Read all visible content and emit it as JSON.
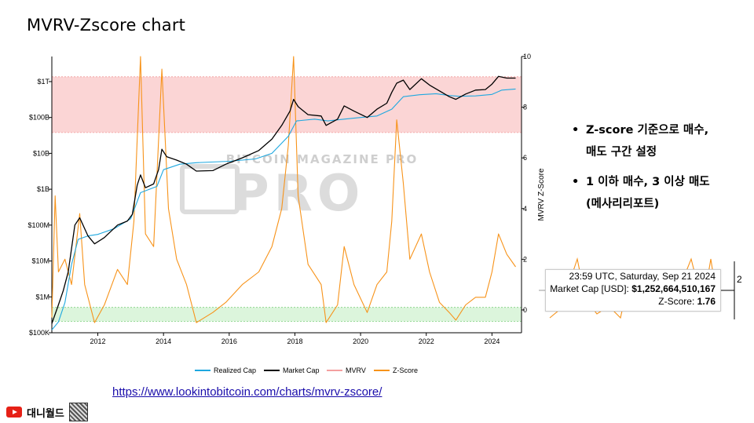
{
  "slide": {
    "title": "MVRV-Zscore chart",
    "bullets": [
      {
        "lines": [
          "Z-score 기준으로 매수,",
          "매도 구간 설정"
        ]
      },
      {
        "lines": [
          "1 이하 매수, 3 이상 매도",
          "(메사리리포트)"
        ]
      }
    ],
    "source_link": "https://www.lookintobitcoin.com/charts/mvrv-zscore/",
    "channel_name": "대니월드",
    "channel_icon": "youtube-icon"
  },
  "tooltip": {
    "timestamp": "23:59 UTC, Saturday, Sep 21 2024",
    "market_cap_label": "Market Cap [USD]: ",
    "market_cap_value": "$1,252,664,510,167",
    "zscore_label": "Z-Score: ",
    "zscore_value": "1.76",
    "side_tick": "2"
  },
  "chart_data": {
    "type": "line",
    "watermark": "BITCOIN MAGAZINE PRO",
    "x_ticks": [
      "2012",
      "2014",
      "2016",
      "2018",
      "2020",
      "2022",
      "2024"
    ],
    "x_range": [
      2010.6,
      2024.9
    ],
    "left_axis": {
      "scale": "log",
      "range": [
        100000,
        5000000000000
      ],
      "ticks": [
        {
          "v": 100000,
          "label": "$100K"
        },
        {
          "v": 1000000,
          "label": "$1M"
        },
        {
          "v": 10000000,
          "label": "$10M"
        },
        {
          "v": 100000000,
          "label": "$100M"
        },
        {
          "v": 1000000000,
          "label": "$1B"
        },
        {
          "v": 10000000000,
          "label": "$10B"
        },
        {
          "v": 100000000000,
          "label": "$100B"
        },
        {
          "v": 1000000000000,
          "label": "$1T"
        }
      ]
    },
    "right_axis": {
      "label": "MVRV Z-Score",
      "range": [
        -0.9,
        10
      ],
      "ticks": [
        "0",
        "2",
        "4",
        "6",
        "8",
        "10"
      ]
    },
    "bands": [
      {
        "name": "sell-zone",
        "z_from": 7,
        "z_to": 9.2,
        "color": "#fbd5d5"
      },
      {
        "name": "buy-zone",
        "z_from": -0.45,
        "z_to": 0.1,
        "color": "#dcf5dc"
      }
    ],
    "legend": {
      "placement": "bottom",
      "entries": [
        {
          "name": "Realized Cap",
          "color": "#1ea8e0"
        },
        {
          "name": "Market Cap",
          "color": "#000000"
        },
        {
          "name": "MVRV",
          "color": "#f4a0a0"
        },
        {
          "name": "Z-Score",
          "color": "#f7931a"
        }
      ]
    },
    "series": [
      {
        "name": "Market Cap",
        "color": "#000000",
        "axis": "left",
        "points": [
          [
            2010.6,
            180000
          ],
          [
            2010.8,
            600000
          ],
          [
            2010.95,
            1500000
          ],
          [
            2011.1,
            5000000
          ],
          [
            2011.3,
            100000000
          ],
          [
            2011.45,
            160000000
          ],
          [
            2011.7,
            50000000
          ],
          [
            2011.9,
            30000000
          ],
          [
            2012.2,
            45000000
          ],
          [
            2012.6,
            100000000
          ],
          [
            2012.9,
            130000000
          ],
          [
            2013.05,
            200000000
          ],
          [
            2013.2,
            1300000000
          ],
          [
            2013.3,
            2500000000
          ],
          [
            2013.45,
            1100000000
          ],
          [
            2013.7,
            1400000000
          ],
          [
            2013.85,
            3500000000
          ],
          [
            2013.95,
            13000000000
          ],
          [
            2014.1,
            8000000000
          ],
          [
            2014.4,
            6500000000
          ],
          [
            2014.7,
            5000000000
          ],
          [
            2015.0,
            3200000000
          ],
          [
            2015.5,
            3300000000
          ],
          [
            2015.9,
            5000000000
          ],
          [
            2016.4,
            7500000000
          ],
          [
            2016.9,
            12000000000
          ],
          [
            2017.3,
            25000000000
          ],
          [
            2017.6,
            60000000000
          ],
          [
            2017.85,
            150000000000
          ],
          [
            2017.96,
            320000000000
          ],
          [
            2018.1,
            200000000000
          ],
          [
            2018.4,
            120000000000
          ],
          [
            2018.8,
            110000000000
          ],
          [
            2018.95,
            60000000000
          ],
          [
            2019.3,
            90000000000
          ],
          [
            2019.5,
            210000000000
          ],
          [
            2019.8,
            150000000000
          ],
          [
            2020.2,
            100000000000
          ],
          [
            2020.5,
            170000000000
          ],
          [
            2020.8,
            250000000000
          ],
          [
            2020.95,
            500000000000
          ],
          [
            2021.1,
            900000000000
          ],
          [
            2021.3,
            1100000000000
          ],
          [
            2021.5,
            600000000000
          ],
          [
            2021.85,
            1200000000000
          ],
          [
            2022.1,
            800000000000
          ],
          [
            2022.4,
            550000000000
          ],
          [
            2022.7,
            380000000000
          ],
          [
            2022.9,
            320000000000
          ],
          [
            2023.2,
            450000000000
          ],
          [
            2023.5,
            580000000000
          ],
          [
            2023.8,
            600000000000
          ],
          [
            2024.0,
            850000000000
          ],
          [
            2024.2,
            1400000000000
          ],
          [
            2024.45,
            1250000000000
          ],
          [
            2024.72,
            1250000000000
          ]
        ]
      },
      {
        "name": "Realized Cap",
        "color": "#1ea8e0",
        "axis": "left",
        "points": [
          [
            2010.6,
            120000
          ],
          [
            2010.8,
            200000
          ],
          [
            2011.0,
            700000
          ],
          [
            2011.2,
            8000000
          ],
          [
            2011.4,
            40000000
          ],
          [
            2011.7,
            50000000
          ],
          [
            2012.0,
            55000000
          ],
          [
            2012.5,
            80000000
          ],
          [
            2013.0,
            150000000
          ],
          [
            2013.3,
            800000000
          ],
          [
            2013.8,
            1200000000
          ],
          [
            2014.0,
            3500000000
          ],
          [
            2014.5,
            5000000000
          ],
          [
            2015.0,
            5500000000
          ],
          [
            2016.0,
            6000000000
          ],
          [
            2016.8,
            7000000000
          ],
          [
            2017.3,
            10000000000
          ],
          [
            2017.8,
            30000000000
          ],
          [
            2018.05,
            80000000000
          ],
          [
            2018.6,
            90000000000
          ],
          [
            2019.0,
            80000000000
          ],
          [
            2019.5,
            90000000000
          ],
          [
            2020.0,
            100000000000
          ],
          [
            2020.5,
            110000000000
          ],
          [
            2020.95,
            170000000000
          ],
          [
            2021.3,
            380000000000
          ],
          [
            2021.8,
            430000000000
          ],
          [
            2022.3,
            460000000000
          ],
          [
            2022.7,
            410000000000
          ],
          [
            2023.0,
            390000000000
          ],
          [
            2023.5,
            400000000000
          ],
          [
            2024.0,
            440000000000
          ],
          [
            2024.3,
            580000000000
          ],
          [
            2024.72,
            620000000000
          ]
        ]
      },
      {
        "name": "Z-Score",
        "color": "#f7931a",
        "axis": "right",
        "points": [
          [
            2010.6,
            -0.3
          ],
          [
            2010.7,
            4.5
          ],
          [
            2010.8,
            1.5
          ],
          [
            2011.0,
            2.0
          ],
          [
            2011.2,
            1.0
          ],
          [
            2011.45,
            3.8
          ],
          [
            2011.6,
            1.0
          ],
          [
            2011.9,
            -0.5
          ],
          [
            2012.2,
            0.2
          ],
          [
            2012.6,
            1.6
          ],
          [
            2012.9,
            1.0
          ],
          [
            2013.1,
            3.5
          ],
          [
            2013.3,
            10.0
          ],
          [
            2013.45,
            3.0
          ],
          [
            2013.7,
            2.5
          ],
          [
            2013.95,
            9.5
          ],
          [
            2014.15,
            4.0
          ],
          [
            2014.4,
            2.0
          ],
          [
            2014.7,
            1.0
          ],
          [
            2015.0,
            -0.5
          ],
          [
            2015.5,
            -0.1
          ],
          [
            2015.9,
            0.3
          ],
          [
            2016.4,
            1.0
          ],
          [
            2016.9,
            1.5
          ],
          [
            2017.3,
            2.5
          ],
          [
            2017.6,
            4.0
          ],
          [
            2017.8,
            6.5
          ],
          [
            2017.96,
            10.0
          ],
          [
            2018.1,
            4.5
          ],
          [
            2018.4,
            1.8
          ],
          [
            2018.8,
            1.0
          ],
          [
            2018.95,
            -0.5
          ],
          [
            2019.3,
            0.2
          ],
          [
            2019.5,
            2.5
          ],
          [
            2019.8,
            1.0
          ],
          [
            2020.2,
            -0.1
          ],
          [
            2020.5,
            1.0
          ],
          [
            2020.8,
            1.5
          ],
          [
            2020.95,
            3.5
          ],
          [
            2021.1,
            7.5
          ],
          [
            2021.3,
            5.0
          ],
          [
            2021.5,
            2.0
          ],
          [
            2021.85,
            3.0
          ],
          [
            2022.1,
            1.5
          ],
          [
            2022.4,
            0.3
          ],
          [
            2022.7,
            -0.1
          ],
          [
            2022.9,
            -0.4
          ],
          [
            2023.2,
            0.2
          ],
          [
            2023.5,
            0.5
          ],
          [
            2023.8,
            0.5
          ],
          [
            2024.0,
            1.5
          ],
          [
            2024.2,
            3.0
          ],
          [
            2024.45,
            2.2
          ],
          [
            2024.72,
            1.7
          ]
        ]
      }
    ]
  }
}
